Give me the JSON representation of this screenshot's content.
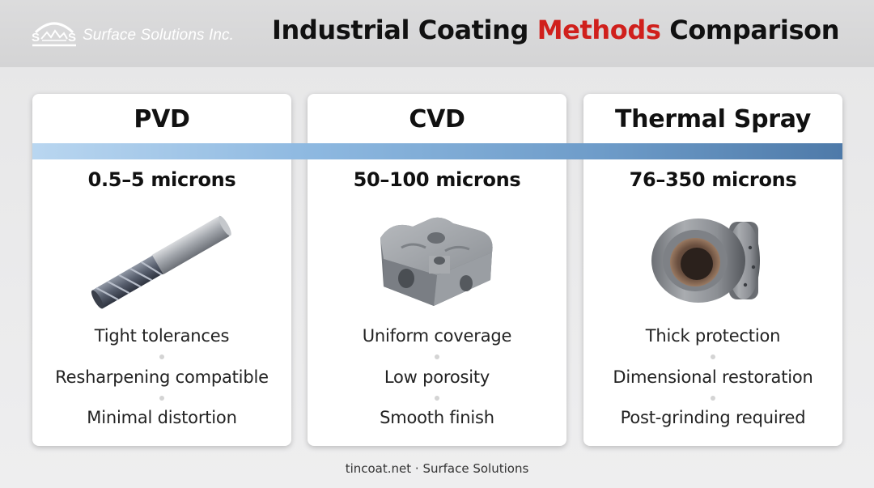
{
  "header": {
    "logo_text": "Surface Solutions Inc.",
    "title_part1": "Industrial Coating ",
    "title_accent": "Methods",
    "title_part3": " Comparison"
  },
  "colors": {
    "accent": "#d0201c",
    "band_start": "#b9d6f0",
    "band_end": "#4e7aa9"
  },
  "cards": [
    {
      "title": "PVD",
      "thickness": "0.5–5 microns",
      "image_icon": "end-mill-icon",
      "features": [
        "Tight tolerances",
        "Resharpening compatible",
        "Minimal distortion"
      ]
    },
    {
      "title": "CVD",
      "thickness": "50–100 microns",
      "image_icon": "valve-block-icon",
      "features": [
        "Uniform coverage",
        "Low porosity",
        "Smooth finish"
      ]
    },
    {
      "title": "Thermal Spray",
      "thickness": "76–350 microns",
      "image_icon": "bearing-ring-icon",
      "features": [
        "Thick protection",
        "Dimensional restoration",
        "Post-grinding required"
      ]
    }
  ],
  "footer": {
    "text": "tincoat.net · Surface Solutions"
  }
}
